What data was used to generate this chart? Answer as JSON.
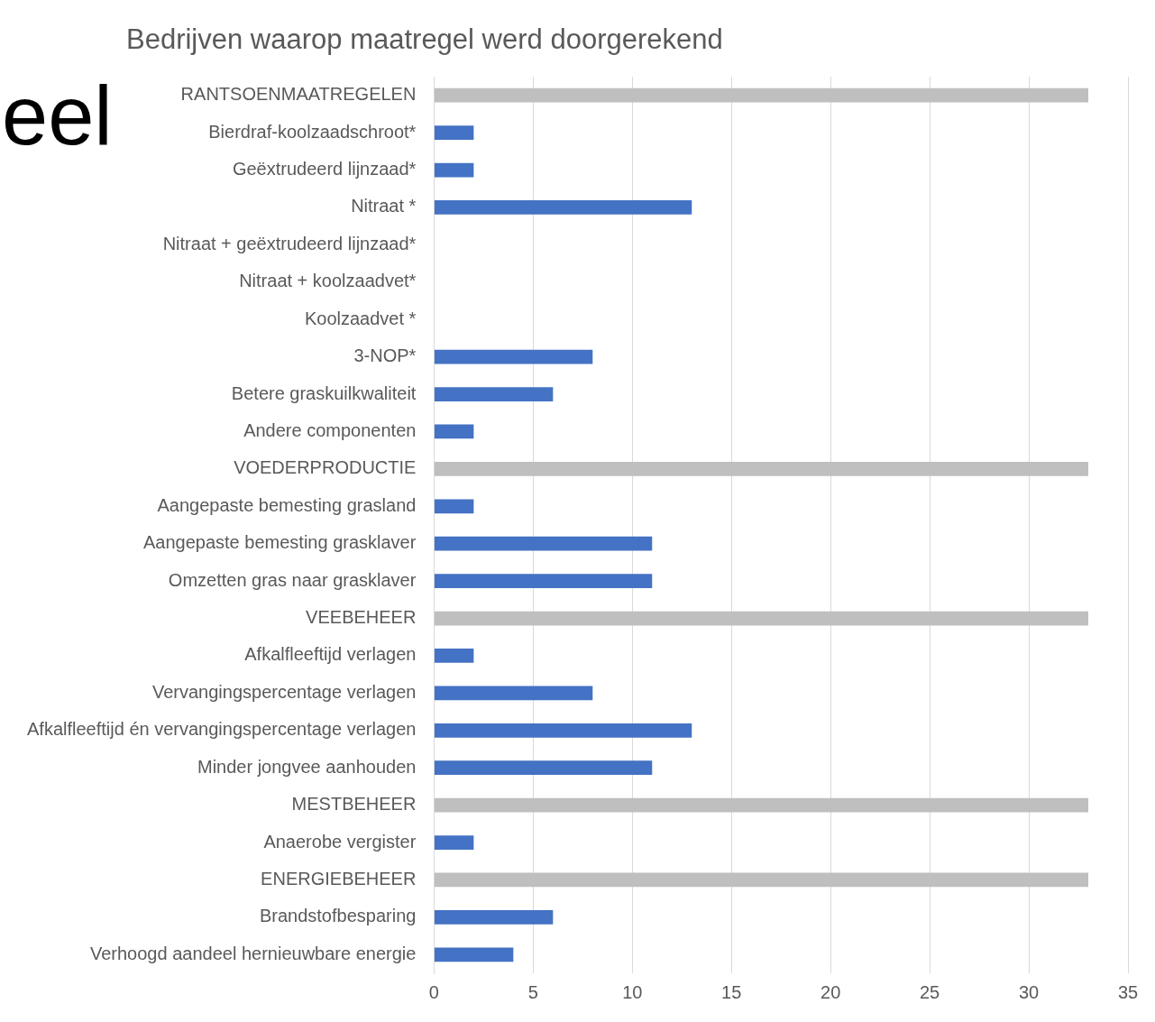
{
  "chart_data": {
    "type": "bar",
    "orientation": "horizontal",
    "title": "Bedrijven waarop maatregel werd doorgerekend",
    "annotations": [
      "eel"
    ],
    "categories": [
      "RANTSOENMAATREGELEN",
      "Bierdraf-koolzaadschroot*",
      "Geëxtrudeerd lijnzaad*",
      "Nitraat *",
      "Nitraat + geëxtrudeerd lijnzaad*",
      "Nitraat + koolzaadvet*",
      "Koolzaadvet *",
      "3-NOP*",
      "Betere graskuilkwaliteit",
      "Andere componenten",
      "VOEDERPRODUCTIE",
      "Aangepaste bemesting grasland",
      "Aangepaste bemesting grasklaver",
      "Omzetten gras naar grasklaver",
      "VEEBEHEER",
      "Afkalfleeftijd verlagen",
      "Vervangingspercentage verlagen",
      "Afkalfleeftijd én vervangingspercentage verlagen",
      "Minder jongvee aanhouden",
      "MESTBEHEER",
      "Anaerobe vergister",
      "ENERGIEBEHEER",
      "Brandstofbesparing",
      "Verhoogd aandeel hernieuwbare energie"
    ],
    "values": [
      33,
      2,
      2,
      13,
      null,
      null,
      null,
      8,
      6,
      2,
      33,
      2,
      11,
      11,
      33,
      2,
      8,
      13,
      11,
      33,
      2,
      33,
      6,
      4
    ],
    "colors": [
      "#bfbfbf",
      "#4472c4",
      "#4472c4",
      "#4472c4",
      "#4472c4",
      "#4472c4",
      "#4472c4",
      "#4472c4",
      "#4472c4",
      "#4472c4",
      "#bfbfbf",
      "#4472c4",
      "#4472c4",
      "#4472c4",
      "#bfbfbf",
      "#4472c4",
      "#4472c4",
      "#4472c4",
      "#4472c4",
      "#bfbfbf",
      "#4472c4",
      "#bfbfbf",
      "#4472c4",
      "#4472c4"
    ],
    "xlim": [
      0,
      35
    ],
    "xticks": [
      0,
      5,
      10,
      15,
      20,
      25,
      30,
      35
    ],
    "grid": "x",
    "legend": false
  }
}
